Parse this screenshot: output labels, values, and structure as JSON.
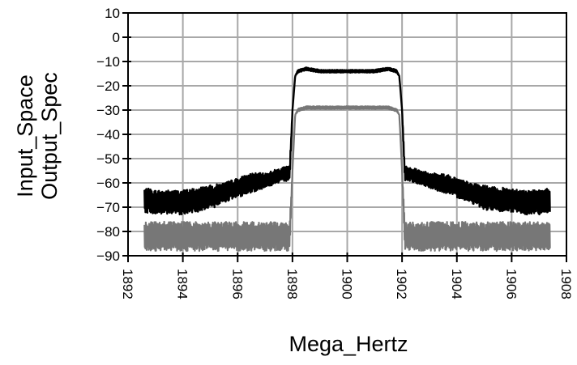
{
  "chart_data": {
    "type": "line",
    "title": "",
    "xlabel": "Mega_Hertz",
    "ylabel": [
      "Input_Space",
      "Output_Spec"
    ],
    "xlim": [
      1892,
      1908
    ],
    "ylim": [
      -90,
      10
    ],
    "x_ticks": [
      1892,
      1894,
      1896,
      1898,
      1900,
      1902,
      1904,
      1906,
      1908
    ],
    "y_ticks": [
      10,
      0,
      -10,
      -20,
      -30,
      -40,
      -50,
      -60,
      -70,
      -80,
      -90
    ],
    "grid": true,
    "legend": "none",
    "series": [
      {
        "color": "#000000",
        "x": [
          1892.6,
          1893.0,
          1893.5,
          1894.0,
          1894.5,
          1895.0,
          1895.5,
          1896.0,
          1896.5,
          1897.0,
          1897.5,
          1897.9,
          1898.0,
          1898.1,
          1898.2,
          1898.5,
          1899.0,
          1899.5,
          1900.0,
          1900.5,
          1901.0,
          1901.5,
          1901.8,
          1901.9,
          1902.0,
          1902.1,
          1902.5,
          1903.0,
          1903.5,
          1904.0,
          1904.5,
          1905.0,
          1905.5,
          1906.0,
          1906.5,
          1907.0,
          1907.4
        ],
        "y": [
          -67,
          -68,
          -68,
          -68,
          -67,
          -66,
          -64,
          -62,
          -60,
          -59,
          -57,
          -56,
          -30,
          -16,
          -14,
          -13,
          -14,
          -14,
          -14,
          -14,
          -14,
          -13,
          -14,
          -16,
          -30,
          -56,
          -57,
          -59,
          -60,
          -62,
          -64,
          -66,
          -67,
          -67,
          -68,
          -68,
          -67
        ],
        "ripple": [
          5,
          5,
          5,
          5,
          5,
          5,
          4,
          4,
          4,
          3,
          3,
          3,
          0,
          0,
          0.6,
          0.6,
          0.6,
          0.6,
          0.6,
          0.6,
          0.6,
          0.6,
          0.6,
          0,
          0,
          3,
          3,
          3,
          4,
          4,
          4,
          5,
          5,
          5,
          5,
          5,
          5
        ]
      },
      {
        "color": "#777777",
        "x": [
          1892.6,
          1893.0,
          1894.0,
          1895.0,
          1896.0,
          1897.0,
          1897.9,
          1898.0,
          1898.1,
          1898.2,
          1898.5,
          1899.0,
          1900.0,
          1901.0,
          1901.5,
          1901.8,
          1901.9,
          1902.0,
          1902.1,
          1903.0,
          1904.0,
          1905.0,
          1906.0,
          1907.0,
          1907.4
        ],
        "y": [
          -82,
          -82,
          -82,
          -82,
          -82,
          -82,
          -82,
          -55,
          -32,
          -30,
          -29,
          -29,
          -29,
          -29,
          -29,
          -30,
          -32,
          -55,
          -82,
          -82,
          -82,
          -82,
          -82,
          -82,
          -82
        ],
        "ripple": [
          6,
          6,
          6,
          6,
          6,
          6,
          6,
          0,
          0,
          0.6,
          0.6,
          0.6,
          0.6,
          0.6,
          0.6,
          0.6,
          0,
          0,
          6,
          6,
          6,
          6,
          6,
          6,
          6
        ]
      }
    ]
  }
}
